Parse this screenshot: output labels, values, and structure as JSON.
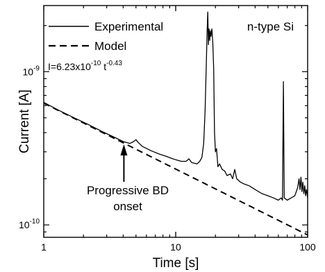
{
  "chart_data": {
    "type": "line",
    "xlabel": "Time [s]",
    "ylabel": "Current [A]",
    "xscale": "log",
    "yscale": "log",
    "xlim": [
      1,
      100
    ],
    "ylim": [
      8.3e-11,
      2.7e-09
    ],
    "grid": false,
    "legend_position": "top-left",
    "ticks": {
      "x": [
        {
          "value": 1,
          "label": "1"
        },
        {
          "value": 10,
          "label": "10"
        },
        {
          "value": 100,
          "label": "100"
        }
      ],
      "y": [
        {
          "value": 1e-10,
          "base": "10",
          "exp": "-10"
        },
        {
          "value": 1e-09,
          "base": "10",
          "exp": "-9"
        }
      ]
    },
    "annotations": {
      "label_top_right": "n-type Si",
      "formula": {
        "prefix": "I=6.23x10",
        "exp1": "-10",
        "mid": " t",
        "exp2": "-0.43"
      },
      "onset_line1": "Progressive BD",
      "onset_line2": "onset",
      "onset_arrow_x": 4.05,
      "onset_arrow_y": 3.5e-10
    },
    "series": [
      {
        "name": "Experimental",
        "style": "solid",
        "color": "#000000",
        "points": [
          [
            1,
            6.3e-10
          ],
          [
            1.3,
            5.6e-10
          ],
          [
            1.7,
            5e-10
          ],
          [
            2.2,
            4.5e-10
          ],
          [
            2.8,
            4.05e-10
          ],
          [
            3.5,
            3.7e-10
          ],
          [
            4.0,
            3.5e-10
          ],
          [
            4.5,
            3.4e-10
          ],
          [
            4.8,
            3.5e-10
          ],
          [
            5.0,
            3.6e-10
          ],
          [
            5.2,
            3.45e-10
          ],
          [
            5.6,
            3.25e-10
          ],
          [
            6.5,
            3.05e-10
          ],
          [
            7.5,
            2.9e-10
          ],
          [
            8.5,
            2.8e-10
          ],
          [
            9.5,
            2.7e-10
          ],
          [
            11,
            2.6e-10
          ],
          [
            12,
            2.6e-10
          ],
          [
            12.6,
            2.7e-10
          ],
          [
            13.2,
            2.55e-10
          ],
          [
            14.5,
            2.5e-10
          ],
          [
            15.2,
            2.6e-10
          ],
          [
            15.8,
            2.75e-10
          ],
          [
            16.3,
            3.4e-10
          ],
          [
            16.7,
            5.5e-10
          ],
          [
            17.0,
            1e-09
          ],
          [
            17.3,
            1.8e-09
          ],
          [
            17.5,
            2.45e-09
          ],
          [
            17.7,
            1.5e-09
          ],
          [
            17.9,
            1.9e-09
          ],
          [
            18.1,
            1.6e-09
          ],
          [
            18.3,
            1.85e-09
          ],
          [
            18.5,
            1.7e-09
          ],
          [
            18.8,
            1.9e-09
          ],
          [
            19.1,
            1.55e-09
          ],
          [
            19.4,
            1.05e-09
          ],
          [
            19.7,
            4e-10
          ],
          [
            20.0,
            3e-10
          ],
          [
            20.4,
            3.15e-10
          ],
          [
            20.9,
            2.4e-10
          ],
          [
            21.5,
            2.5e-10
          ],
          [
            22.5,
            2.3e-10
          ],
          [
            23.5,
            2.25e-10
          ],
          [
            24.5,
            2.1e-10
          ],
          [
            26,
            2.15e-10
          ],
          [
            27,
            2e-10
          ],
          [
            28,
            2.3e-10
          ],
          [
            29,
            2e-10
          ],
          [
            31,
            1.9e-10
          ],
          [
            33,
            1.85e-10
          ],
          [
            36,
            1.8e-10
          ],
          [
            40,
            1.7e-10
          ],
          [
            45,
            1.6e-10
          ],
          [
            50,
            1.55e-10
          ],
          [
            55,
            1.5e-10
          ],
          [
            60,
            1.45e-10
          ],
          [
            63,
            1.5e-10
          ],
          [
            64.5,
            1.45e-10
          ],
          [
            65.5,
            8.6e-10
          ],
          [
            66.5,
            1.5e-10
          ],
          [
            70,
            1.45e-10
          ],
          [
            75,
            1.5e-10
          ],
          [
            80,
            1.55e-10
          ],
          [
            84,
            1.75e-10
          ],
          [
            86,
            2e-10
          ],
          [
            87.5,
            1.7e-10
          ],
          [
            89,
            2.05e-10
          ],
          [
            90.5,
            1.65e-10
          ],
          [
            92,
            1.9e-10
          ],
          [
            93.5,
            1.6e-10
          ],
          [
            95,
            1.8e-10
          ],
          [
            96.5,
            1.55e-10
          ],
          [
            98,
            1.7e-10
          ],
          [
            100,
            1.5e-10
          ]
        ]
      },
      {
        "name": "Model",
        "style": "dashed",
        "color": "#000000",
        "function": {
          "a": 6.23e-10,
          "b": -0.43
        }
      }
    ]
  }
}
